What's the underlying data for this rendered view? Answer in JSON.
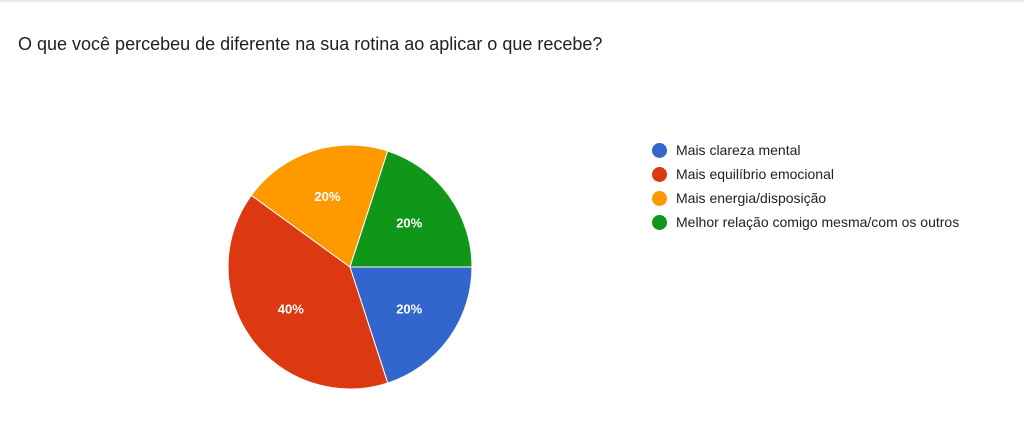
{
  "chart_data": {
    "type": "pie",
    "title": "O que você percebeu de diferente na sua rotina ao aplicar o que recebe?",
    "categories": [
      "Mais clareza mental",
      "Mais equilíbrio emocional",
      "Mais energia/disposição",
      "Melhor relação comigo mesma/com os outros"
    ],
    "values": [
      20,
      40,
      20,
      20
    ],
    "value_labels": [
      "20%",
      "40%",
      "20%",
      "20%"
    ],
    "colors": [
      "#3366cc",
      "#dc3912",
      "#ff9900",
      "#109618"
    ],
    "legend": "right"
  }
}
